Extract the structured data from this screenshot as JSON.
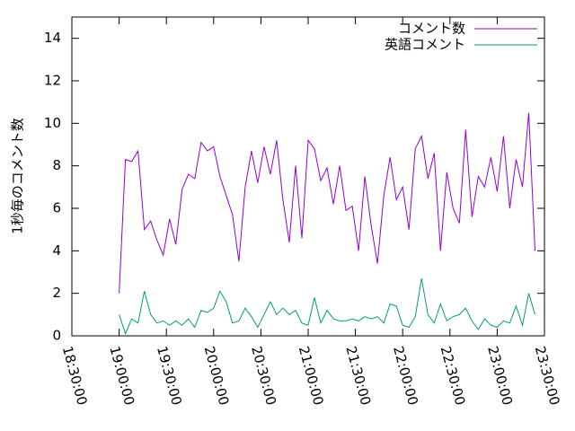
{
  "chart_data": {
    "type": "line",
    "ylabel": "1秒毎のコメント数",
    "x": [
      "19:00:00",
      "19:04:00",
      "19:08:00",
      "19:12:00",
      "19:16:00",
      "19:20:00",
      "19:24:00",
      "19:28:00",
      "19:32:00",
      "19:36:00",
      "19:40:00",
      "19:44:00",
      "19:48:00",
      "19:52:00",
      "19:56:00",
      "20:00:00",
      "20:04:00",
      "20:08:00",
      "20:12:00",
      "20:16:00",
      "20:20:00",
      "20:24:00",
      "20:28:00",
      "20:32:00",
      "20:36:00",
      "20:40:00",
      "20:44:00",
      "20:48:00",
      "20:52:00",
      "20:56:00",
      "21:00:00",
      "21:04:00",
      "21:08:00",
      "21:12:00",
      "21:16:00",
      "21:20:00",
      "21:24:00",
      "21:28:00",
      "21:32:00",
      "21:36:00",
      "21:40:00",
      "21:44:00",
      "21:48:00",
      "21:52:00",
      "21:56:00",
      "22:00:00",
      "22:04:00",
      "22:08:00",
      "22:12:00",
      "22:16:00",
      "22:20:00",
      "22:24:00",
      "22:28:00",
      "22:32:00",
      "22:36:00",
      "22:40:00",
      "22:44:00",
      "22:48:00",
      "22:52:00",
      "22:56:00",
      "23:00:00",
      "23:04:00",
      "23:08:00",
      "23:12:00",
      "23:16:00",
      "23:20:00",
      "23:24:00"
    ],
    "series": [
      {
        "name": "コメント数",
        "color": "#9400d3",
        "values": [
          2.0,
          8.3,
          8.2,
          8.7,
          5.0,
          5.4,
          4.5,
          3.8,
          5.5,
          4.3,
          6.9,
          7.6,
          7.4,
          9.1,
          8.7,
          8.9,
          7.5,
          6.6,
          5.7,
          3.5,
          7.0,
          8.7,
          7.2,
          8.9,
          7.6,
          9.2,
          6.4,
          4.4,
          8.0,
          4.6,
          9.2,
          8.8,
          7.3,
          7.9,
          6.2,
          8.0,
          5.9,
          6.1,
          4.0,
          7.5,
          5.2,
          3.4,
          6.6,
          8.4,
          6.4,
          7.0,
          5.0,
          8.8,
          9.4,
          7.4,
          8.6,
          4.0,
          7.7,
          6.0,
          5.3,
          9.7,
          5.6,
          7.5,
          7.0,
          8.4,
          6.8,
          9.4,
          6.0,
          8.3,
          7.0,
          10.5,
          4.0
        ]
      },
      {
        "name": "英語コメント",
        "color": "#009e73",
        "values": [
          1.0,
          0.1,
          0.8,
          0.6,
          2.1,
          1.0,
          0.6,
          0.7,
          0.5,
          0.7,
          0.5,
          0.8,
          0.4,
          1.2,
          1.1,
          1.3,
          2.1,
          1.6,
          0.6,
          0.7,
          1.3,
          0.9,
          0.4,
          1.0,
          1.6,
          1.0,
          1.3,
          1.0,
          1.2,
          0.6,
          0.5,
          1.8,
          0.6,
          1.2,
          0.8,
          0.7,
          0.7,
          0.8,
          0.7,
          0.9,
          0.8,
          0.9,
          0.6,
          1.5,
          1.4,
          0.5,
          0.4,
          0.9,
          2.7,
          1.0,
          0.6,
          1.5,
          0.7,
          0.9,
          1.0,
          1.3,
          0.7,
          0.3,
          0.8,
          0.5,
          0.4,
          0.7,
          0.6,
          1.4,
          0.5,
          2.0,
          1.0
        ]
      }
    ],
    "xlim": [
      "18:30:00",
      "23:30:00"
    ],
    "xticks": [
      "18:30:00",
      "19:00:00",
      "19:30:00",
      "20:00:00",
      "20:30:00",
      "21:00:00",
      "21:30:00",
      "22:00:00",
      "22:30:00",
      "23:00:00",
      "23:30:00"
    ],
    "ylim": [
      0,
      15
    ],
    "yticks": [
      0,
      2,
      4,
      6,
      8,
      10,
      12,
      14
    ],
    "legend": "upper-right"
  }
}
